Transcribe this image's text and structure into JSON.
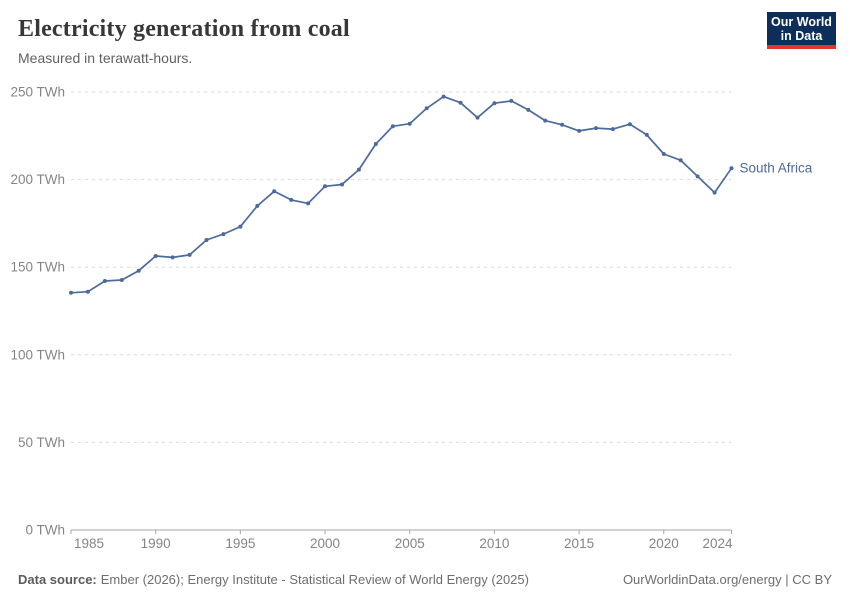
{
  "header": {
    "title": "Electricity generation from coal",
    "subtitle": "Measured in terawatt-hours."
  },
  "logo": {
    "line1": "Our World",
    "line2": "in Data",
    "bg_color": "#0d2e5a",
    "bar_color": "#e0362c"
  },
  "chart_data": {
    "type": "line",
    "title": "Electricity generation from coal",
    "ylabel": "",
    "xlabel": "",
    "unit": "TWh",
    "xlim": [
      1985,
      2024
    ],
    "ylim": [
      0,
      250
    ],
    "grid": "horizontal-dashed",
    "legend_position": "end-of-line-label",
    "x": [
      1985,
      1986,
      1987,
      1988,
      1989,
      1990,
      1991,
      1992,
      1993,
      1994,
      1995,
      1996,
      1997,
      1998,
      1999,
      2000,
      2001,
      2002,
      2003,
      2004,
      2005,
      2006,
      2007,
      2008,
      2009,
      2010,
      2011,
      2012,
      2013,
      2014,
      2015,
      2016,
      2017,
      2018,
      2019,
      2020,
      2021,
      2022,
      2023,
      2024
    ],
    "series": [
      {
        "name": "South Africa",
        "color": "#4c6a9c",
        "values": [
          135.4,
          136.0,
          142.1,
          142.7,
          148.0,
          156.4,
          155.6,
          157.0,
          165.5,
          168.9,
          173.2,
          185.0,
          193.3,
          188.4,
          186.4,
          196.2,
          197.2,
          205.7,
          220.3,
          230.4,
          231.9,
          240.7,
          247.4,
          243.9,
          235.4,
          243.6,
          244.9,
          239.8,
          233.7,
          231.3,
          227.8,
          229.4,
          228.8,
          231.6,
          225.5,
          214.6,
          211.0,
          201.8,
          192.6,
          206.5
        ]
      }
    ],
    "y_ticks": [
      {
        "value": 0,
        "label": "0 TWh"
      },
      {
        "value": 50,
        "label": "50 TWh"
      },
      {
        "value": 100,
        "label": "100 TWh"
      },
      {
        "value": 150,
        "label": "150 TWh"
      },
      {
        "value": 200,
        "label": "200 TWh"
      },
      {
        "value": 250,
        "label": "250 TWh"
      }
    ],
    "x_ticks": [
      {
        "value": 1985,
        "label": "1985"
      },
      {
        "value": 1990,
        "label": "1990"
      },
      {
        "value": 1995,
        "label": "1995"
      },
      {
        "value": 2000,
        "label": "2000"
      },
      {
        "value": 2005,
        "label": "2005"
      },
      {
        "value": 2010,
        "label": "2010"
      },
      {
        "value": 2015,
        "label": "2015"
      },
      {
        "value": 2020,
        "label": "2020"
      },
      {
        "value": 2024,
        "label": "2024"
      }
    ],
    "colors": {
      "gridline": "#dadada",
      "axis": "#a5a5a5",
      "tick_text": "#858585"
    }
  },
  "footer": {
    "source_label": "Data source:",
    "source_text": "Ember (2026); Energy Institute - Statistical Review of World Energy (2025)",
    "license_text": "OurWorldinData.org/energy | CC BY"
  }
}
